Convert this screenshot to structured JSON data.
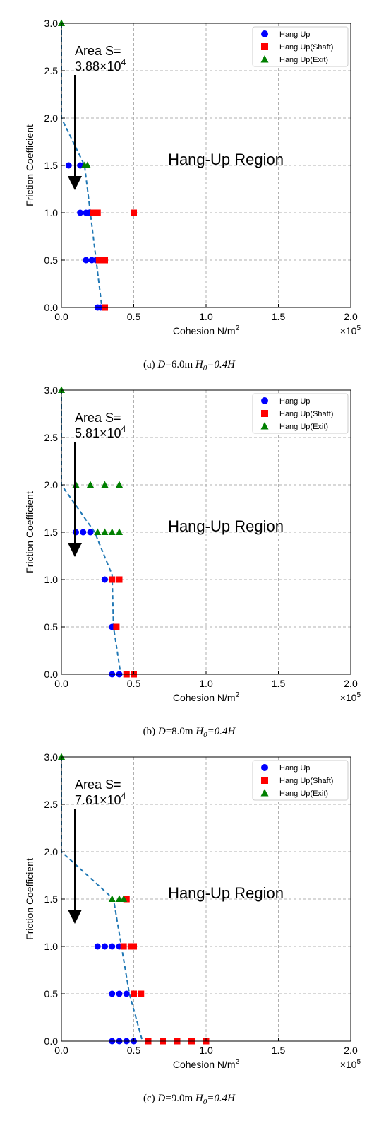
{
  "chart_data": [
    {
      "type": "scatter",
      "caption": {
        "prefix": "(a) ",
        "d_sym": "D",
        "d_val": "=6.0m ",
        "h_sym": "H",
        "h_sub": "0",
        "h_val": "=0.4H"
      },
      "area_label": "Area S=",
      "area_mantissa": "3.88",
      "area_exponent": "4",
      "region_label": "Hang-Up Region",
      "xlabel": "Cohesion N/m",
      "xlabel_sup": "2",
      "ylabel": "Friction Coefficient",
      "x_multiplier_exp": "5",
      "xlim": [
        0,
        2.0
      ],
      "ylim": [
        0,
        3.0
      ],
      "xticks": [
        "0.0",
        "0.5",
        "1.0",
        "1.5",
        "2.0"
      ],
      "yticks": [
        "0.0",
        "0.5",
        "1.0",
        "1.5",
        "2.0",
        "2.5",
        "3.0"
      ],
      "grid": true,
      "legend_position": "upper-right",
      "series": [
        {
          "name": "Hang Up",
          "marker": "circle",
          "color": "#0000ff",
          "points": [
            [
              0.05,
              1.5
            ],
            [
              0.13,
              1.5
            ],
            [
              0.13,
              1.0
            ],
            [
              0.17,
              1.0
            ],
            [
              0.19,
              1.0
            ],
            [
              0.17,
              0.5
            ],
            [
              0.21,
              0.5
            ],
            [
              0.24,
              0.5
            ],
            [
              0.25,
              0.0
            ],
            [
              0.27,
              0.0
            ]
          ]
        },
        {
          "name": "Hang Up(Shaft)",
          "marker": "square",
          "color": "#ff0000",
          "points": [
            [
              0.22,
              1.0
            ],
            [
              0.24,
              1.0
            ],
            [
              0.25,
              1.0
            ],
            [
              0.5,
              1.0
            ],
            [
              0.26,
              0.5
            ],
            [
              0.28,
              0.5
            ],
            [
              0.3,
              0.5
            ],
            [
              0.3,
              0.0
            ]
          ]
        },
        {
          "name": "Hang Up(Exit)",
          "marker": "triangle",
          "color": "#008000",
          "points": [
            [
              0.0,
              3.0
            ],
            [
              0.16,
              1.5
            ],
            [
              0.18,
              1.5
            ]
          ]
        }
      ],
      "boundary": [
        [
          0.0,
          3.0
        ],
        [
          0.0,
          2.0
        ],
        [
          0.16,
          1.5
        ],
        [
          0.28,
          0.0
        ]
      ]
    },
    {
      "type": "scatter",
      "caption": {
        "prefix": "(b) ",
        "d_sym": "D",
        "d_val": "=8.0m ",
        "h_sym": "H",
        "h_sub": "0",
        "h_val": "=0.4H"
      },
      "area_label": "Area S=",
      "area_mantissa": "5.81",
      "area_exponent": "4",
      "region_label": "Hang-Up Region",
      "xlabel": "Cohesion N/m",
      "xlabel_sup": "2",
      "ylabel": "Friction Coefficient",
      "x_multiplier_exp": "5",
      "xlim": [
        0,
        2.0
      ],
      "ylim": [
        0,
        3.0
      ],
      "xticks": [
        "0.0",
        "0.5",
        "1.0",
        "1.5",
        "2.0"
      ],
      "yticks": [
        "0.0",
        "0.5",
        "1.0",
        "1.5",
        "2.0",
        "2.5",
        "3.0"
      ],
      "grid": true,
      "legend_position": "upper-right",
      "series": [
        {
          "name": "Hang Up",
          "marker": "circle",
          "color": "#0000ff",
          "points": [
            [
              0.1,
              1.5
            ],
            [
              0.15,
              1.5
            ],
            [
              0.2,
              1.5
            ],
            [
              0.3,
              1.0
            ],
            [
              0.35,
              0.5
            ],
            [
              0.35,
              0.0
            ],
            [
              0.4,
              0.0
            ]
          ]
        },
        {
          "name": "Hang Up(Shaft)",
          "marker": "square",
          "color": "#ff0000",
          "points": [
            [
              0.35,
              1.0
            ],
            [
              0.4,
              1.0
            ],
            [
              0.38,
              0.5
            ],
            [
              0.45,
              0.0
            ],
            [
              0.5,
              0.0
            ]
          ]
        },
        {
          "name": "Hang Up(Exit)",
          "marker": "triangle",
          "color": "#008000",
          "points": [
            [
              0.0,
              3.0
            ],
            [
              0.1,
              2.0
            ],
            [
              0.2,
              2.0
            ],
            [
              0.3,
              2.0
            ],
            [
              0.4,
              2.0
            ],
            [
              0.25,
              1.5
            ],
            [
              0.3,
              1.5
            ],
            [
              0.35,
              1.5
            ],
            [
              0.4,
              1.5
            ]
          ]
        }
      ],
      "boundary": [
        [
          0.0,
          3.0
        ],
        [
          0.0,
          2.0
        ],
        [
          0.23,
          1.5
        ],
        [
          0.35,
          1.05
        ],
        [
          0.36,
          0.5
        ],
        [
          0.41,
          0.0
        ]
      ]
    },
    {
      "type": "scatter",
      "caption": {
        "prefix": "(c) ",
        "d_sym": "D",
        "d_val": "=9.0m ",
        "h_sym": "H",
        "h_sub": "0",
        "h_val": "=0.4H"
      },
      "area_label": "Area S=",
      "area_mantissa": "7.61",
      "area_exponent": "4",
      "region_label": "Hang-Up Region",
      "xlabel": "Cohesion N/m",
      "xlabel_sup": "2",
      "ylabel": "Friction Coefficient",
      "x_multiplier_exp": "5",
      "xlim": [
        0,
        2.0
      ],
      "ylim": [
        0,
        3.0
      ],
      "xticks": [
        "0.0",
        "0.5",
        "1.0",
        "1.5",
        "2.0"
      ],
      "yticks": [
        "0.0",
        "0.5",
        "1.0",
        "1.5",
        "2.0",
        "2.5",
        "3.0"
      ],
      "grid": true,
      "legend_position": "upper-right",
      "series": [
        {
          "name": "Hang Up",
          "marker": "circle",
          "color": "#0000ff",
          "points": [
            [
              0.25,
              1.0
            ],
            [
              0.3,
              1.0
            ],
            [
              0.35,
              1.0
            ],
            [
              0.4,
              1.0
            ],
            [
              0.35,
              0.5
            ],
            [
              0.4,
              0.5
            ],
            [
              0.45,
              0.5
            ],
            [
              0.35,
              0.0
            ],
            [
              0.4,
              0.0
            ],
            [
              0.45,
              0.0
            ],
            [
              0.5,
              0.0
            ]
          ]
        },
        {
          "name": "Hang Up(Shaft)",
          "marker": "square",
          "color": "#ff0000",
          "points": [
            [
              0.45,
              1.5
            ],
            [
              0.43,
              1.0
            ],
            [
              0.48,
              1.0
            ],
            [
              0.5,
              1.0
            ],
            [
              0.5,
              0.5
            ],
            [
              0.55,
              0.5
            ],
            [
              0.6,
              0.0
            ],
            [
              0.7,
              0.0
            ],
            [
              0.8,
              0.0
            ],
            [
              0.9,
              0.0
            ],
            [
              1.0,
              0.0
            ]
          ]
        },
        {
          "name": "Hang Up(Exit)",
          "marker": "triangle",
          "color": "#008000",
          "points": [
            [
              0.0,
              3.0
            ],
            [
              0.35,
              1.5
            ],
            [
              0.4,
              1.5
            ],
            [
              0.43,
              1.5
            ]
          ]
        }
      ],
      "boundary": [
        [
          0.0,
          3.0
        ],
        [
          0.0,
          2.0
        ],
        [
          0.36,
          1.5
        ],
        [
          0.47,
          0.5
        ],
        [
          0.56,
          0.0
        ]
      ]
    }
  ]
}
